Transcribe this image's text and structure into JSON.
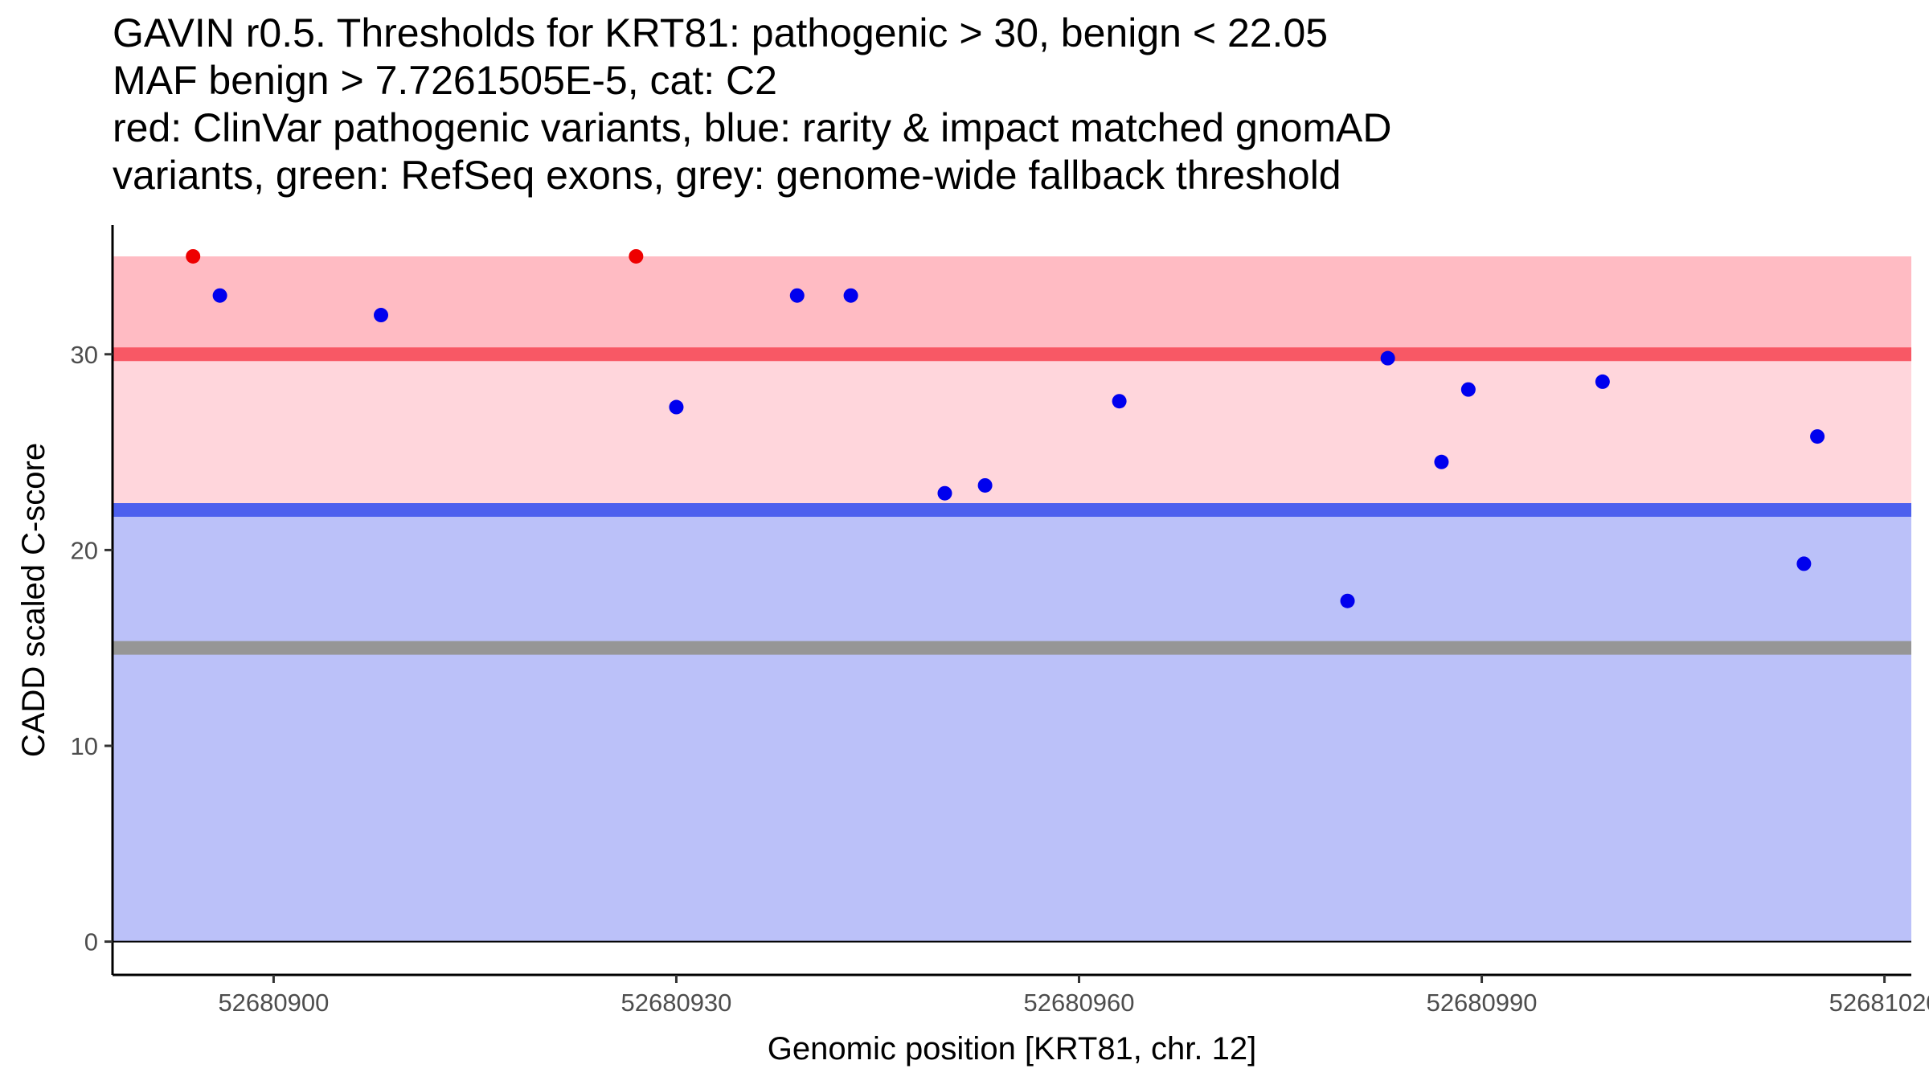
{
  "chart_data": {
    "type": "scatter",
    "title_lines": [
      "GAVIN r0.5. Thresholds for KRT81: pathogenic > 30, benign < 22.05",
      "MAF benign > 7.7261505E-5, cat: C2",
      "red: ClinVar pathogenic variants, blue: rarity & impact matched gnomAD",
      "variants, green: RefSeq exons, grey: genome-wide fallback threshold"
    ],
    "xlabel": "Genomic position [KRT81, chr. 12]",
    "ylabel": "CADD scaled C-score",
    "xlim": [
      52680888,
      52681022
    ],
    "ylim": [
      -1.7,
      36.6
    ],
    "x_ticks": [
      52680900,
      52680930,
      52680960,
      52680990,
      52681020
    ],
    "x_tick_labels": [
      "52680900",
      "52680930",
      "52680960",
      "52680990",
      "52681020"
    ],
    "y_ticks": [
      0,
      10,
      20,
      30
    ],
    "y_tick_labels": [
      "0",
      "10",
      "20",
      "30"
    ],
    "grid": false,
    "regions": [
      {
        "name": "pathogenic-max-band",
        "y0": 30,
        "y1": 35,
        "color": "#ffbbc3"
      },
      {
        "name": "pathogenic-band",
        "y0": 22.05,
        "y1": 30,
        "color": "#ffd6dc"
      },
      {
        "name": "benign-band",
        "y0": 0,
        "y1": 22.05,
        "color": "#bbc1f9"
      }
    ],
    "threshold_lines": [
      {
        "name": "pathogenic-threshold",
        "y": 30,
        "color": "#f85865"
      },
      {
        "name": "benign-threshold",
        "y": 22.05,
        "color": "#4d60ee"
      },
      {
        "name": "fallback-threshold",
        "y": 15,
        "color": "#969696"
      }
    ],
    "series": [
      {
        "name": "ClinVar pathogenic variants",
        "color": "#ee0000",
        "x": [
          52680894,
          52680927
        ],
        "y": [
          35.0,
          35.0
        ]
      },
      {
        "name": "gnomAD matched variants",
        "color": "#0000ee",
        "x": [
          52680896,
          52680908,
          52680930,
          52680939,
          52680943,
          52680950,
          52680953,
          52680963,
          52680980,
          52680983,
          52680987,
          52680989,
          52680999,
          52681014,
          52681015
        ],
        "y": [
          33.0,
          32.0,
          27.3,
          33.0,
          33.0,
          22.9,
          23.3,
          27.6,
          17.4,
          29.8,
          24.5,
          28.2,
          28.6,
          19.3,
          25.8
        ]
      }
    ]
  }
}
